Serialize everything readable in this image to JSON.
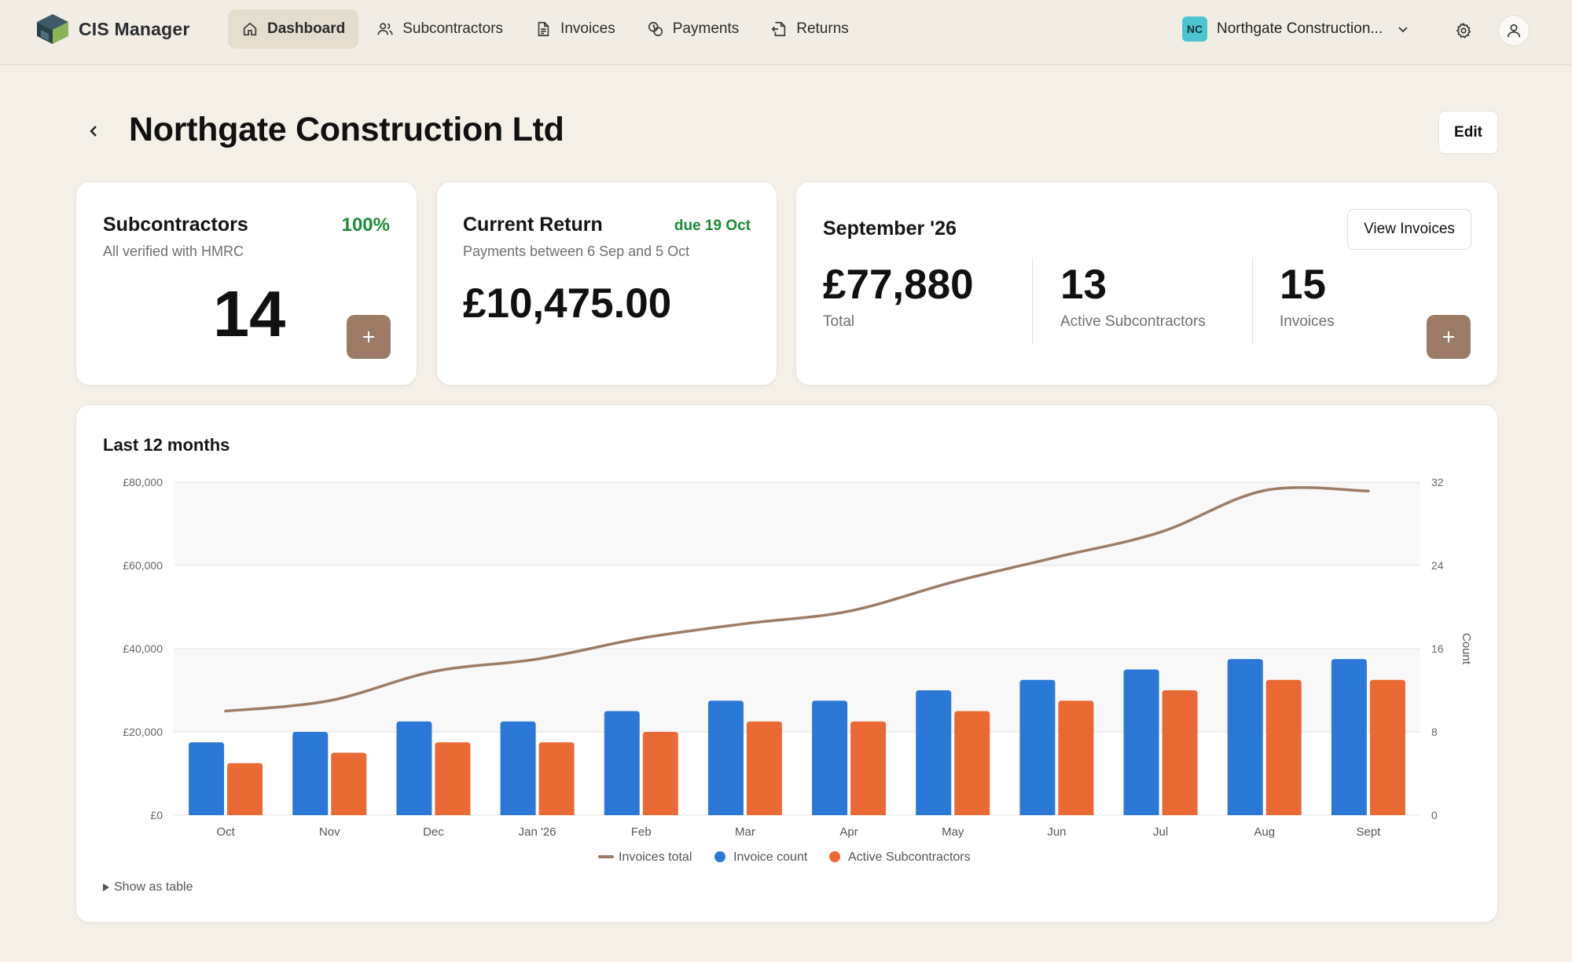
{
  "app": {
    "name": "CIS Manager"
  },
  "nav": {
    "items": [
      {
        "label": "Dashboard",
        "icon": "home-icon",
        "active": true
      },
      {
        "label": "Subcontractors",
        "icon": "users-icon",
        "active": false
      },
      {
        "label": "Invoices",
        "icon": "document-icon",
        "active": false
      },
      {
        "label": "Payments",
        "icon": "coins-icon",
        "active": false
      },
      {
        "label": "Returns",
        "icon": "return-file-icon",
        "active": false
      }
    ]
  },
  "org": {
    "initials": "NC",
    "name": "Northgate Construction...",
    "badge_color": "#4cc5d0"
  },
  "header": {
    "title": "Northgate Construction Ltd",
    "edit_label": "Edit"
  },
  "cards": {
    "subcontractors": {
      "title": "Subcontractors",
      "percent": "100%",
      "subtitle": "All verified with HMRC",
      "count": "14"
    },
    "current_return": {
      "title": "Current Return",
      "due": "due 19 Oct",
      "subtitle": "Payments between 6 Sep and 5 Oct",
      "amount": "£10,475.00"
    },
    "month": {
      "title": "September '26",
      "view_label": "View Invoices",
      "total_value": "£77,880",
      "total_label": "Total",
      "active_value": "13",
      "active_label": "Active Subcontractors",
      "invoices_value": "15",
      "invoices_label": "Invoices"
    }
  },
  "chart": {
    "title": "Last 12 months",
    "show_table_label": "Show as table"
  },
  "colors": {
    "accent": "#9c7c66",
    "line": "#9c7c66",
    "bar_invoice_count": "#2b78d6",
    "bar_active_subs": "#e96a35"
  },
  "chart_data": {
    "type": "bar",
    "categories": [
      "Oct",
      "Nov",
      "Dec",
      "Jan '26",
      "Feb",
      "Mar",
      "Apr",
      "May",
      "Jun",
      "Jul",
      "Aug",
      "Sept"
    ],
    "left_axis": {
      "ticks": [
        "£0",
        "£20,000",
        "£40,000",
        "£60,000",
        "£80,000"
      ],
      "ylim": [
        0,
        80000
      ]
    },
    "right_axis": {
      "ticks": [
        "0",
        "8",
        "16",
        "24",
        "32"
      ],
      "ylim": [
        0,
        32
      ],
      "label": "Count"
    },
    "series": [
      {
        "name": "Invoices total",
        "type": "line",
        "axis": "left",
        "values": [
          25000,
          27500,
          34500,
          37500,
          42500,
          46000,
          49000,
          56000,
          62000,
          68000,
          78000,
          77880
        ]
      },
      {
        "name": "Invoice count",
        "type": "bar",
        "axis": "right",
        "values": [
          7,
          8,
          9,
          9,
          10,
          11,
          11,
          12,
          13,
          14,
          15,
          15
        ]
      },
      {
        "name": "Active Subcontractors",
        "type": "bar",
        "axis": "right",
        "values": [
          5,
          6,
          7,
          7,
          8,
          9,
          9,
          10,
          11,
          12,
          13,
          13
        ]
      }
    ],
    "legend": "bottom-center",
    "grid": true
  }
}
